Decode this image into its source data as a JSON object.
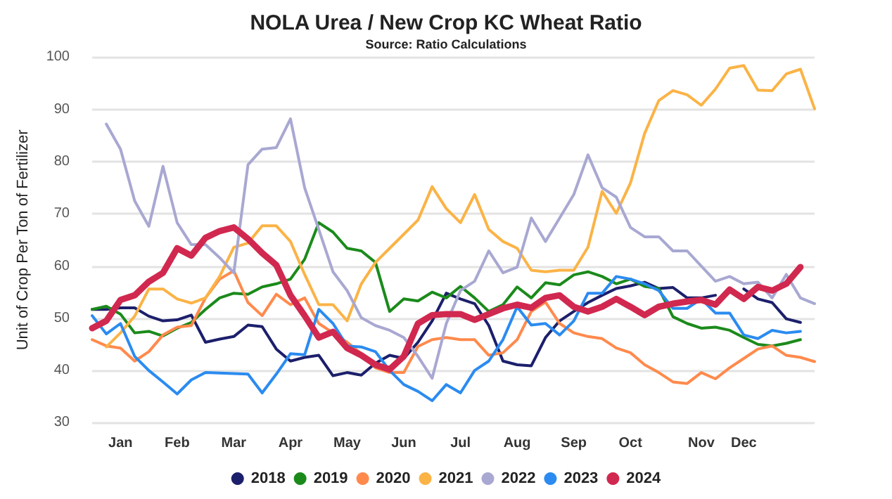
{
  "chart_data": {
    "type": "line",
    "title": "NOLA Urea / New Crop KC Wheat Ratio",
    "subtitle": "Source: Ratio Calculations",
    "ylabel": "Unit of Crop Per Ton of Fertilizer",
    "categories": [
      null,
      null,
      "Jan",
      null,
      null,
      null,
      "Feb",
      null,
      null,
      null,
      "Mar",
      null,
      null,
      null,
      "Apr",
      null,
      null,
      null,
      "May",
      null,
      null,
      null,
      "Jun",
      null,
      null,
      null,
      "Jul",
      null,
      null,
      null,
      "Aug",
      null,
      null,
      null,
      "Sep",
      null,
      null,
      null,
      "Oct",
      null,
      null,
      null,
      null,
      "Nov",
      null,
      null,
      "Dec",
      null,
      null,
      null,
      null,
      null
    ],
    "ylim": [
      30,
      100
    ],
    "yticks": [
      30,
      40,
      50,
      60,
      70,
      80,
      90,
      100
    ],
    "grid": "y",
    "legend": "bottom",
    "marker": "none",
    "line_style": "solid",
    "series": [
      {
        "name": "2018",
        "color": "#1c1f6b",
        "values": [
          51.7,
          51.7,
          52,
          52,
          50.4,
          49.5,
          49.7,
          50.6,
          45.4,
          46,
          46.5,
          48.7,
          48.4,
          44.1,
          41.8,
          42.5,
          42.9,
          39,
          39.6,
          39.1,
          41.4,
          42.9,
          42.3,
          45.4,
          49.5,
          54.8,
          53.7,
          52.8,
          48.6,
          41.8,
          41.1,
          40.9,
          46.3,
          49.5,
          51.3,
          53,
          54.4,
          55.7,
          56.2,
          56.9,
          55.7,
          55.9,
          53.9,
          53.9,
          54.4,
          null,
          55.6,
          53.7,
          53,
          49.9,
          49.2,
          null
        ]
      },
      {
        "name": "2019",
        "color": "#1b8a1b",
        "values": [
          51.7,
          52.3,
          50.8,
          47.2,
          47.5,
          46.6,
          48.1,
          49.2,
          51.7,
          53.9,
          54.8,
          54.6,
          56,
          56.6,
          57.5,
          61.3,
          68.3,
          66.5,
          63.4,
          62.9,
          60.7,
          51.3,
          53.7,
          53.3,
          55,
          53.9,
          56.1,
          53.9,
          51.3,
          52.6,
          56,
          53.9,
          56.8,
          56.4,
          58.3,
          58.9,
          58,
          56.6,
          57.5,
          56.1,
          55.7,
          50.3,
          49,
          48.1,
          48.3,
          47.7,
          46.3,
          45,
          44.7,
          45.2,
          45.9,
          null
        ]
      },
      {
        "name": "2020",
        "color": "#ff8a4c",
        "values": [
          45.9,
          44.7,
          44.3,
          41.8,
          43.6,
          46.8,
          48.3,
          48.6,
          53.9,
          57.5,
          59.1,
          53,
          50.5,
          54.6,
          52.6,
          53.9,
          49,
          47.2,
          45.4,
          43.2,
          40.5,
          39.6,
          39.6,
          44.6,
          45.9,
          46.3,
          45.9,
          45.9,
          42.9,
          43.4,
          45.9,
          51.3,
          53.1,
          49,
          47.2,
          46.5,
          46.1,
          44.3,
          43.4,
          41.1,
          39.6,
          37.8,
          37.5,
          39.6,
          38.4,
          40.5,
          42.3,
          44.1,
          44.7,
          42.9,
          42.5,
          41.7
        ]
      },
      {
        "name": "2021",
        "color": "#fbb346",
        "values": [
          null,
          44.5,
          47.2,
          50.4,
          55.6,
          55.6,
          53.7,
          52.9,
          53.9,
          58,
          63.6,
          64.4,
          67.7,
          67.7,
          64.7,
          58.4,
          52.6,
          52.6,
          49.5,
          56.6,
          60.7,
          63.4,
          66.1,
          68.8,
          75.2,
          71,
          68.3,
          73.7,
          67,
          64.7,
          63.4,
          59.2,
          58.9,
          59.2,
          59.2,
          63.6,
          74.3,
          70.1,
          75.9,
          85.4,
          91.7,
          93.6,
          92.8,
          90.8,
          93.9,
          97.9,
          98.4,
          93.7,
          93.6,
          96.8,
          97.7,
          90.1
        ]
      },
      {
        "name": "2022",
        "color": "#a8a8d2",
        "values": [
          null,
          87.2,
          82.4,
          72.5,
          67.6,
          79.1,
          68.3,
          64.1,
          64.1,
          61.6,
          58.7,
          79.4,
          82.4,
          82.7,
          88.2,
          75,
          67,
          58.9,
          55.3,
          50.1,
          48.6,
          47.7,
          46.3,
          42.7,
          38.5,
          49,
          55.3,
          57.1,
          62.9,
          58.7,
          59.8,
          69.2,
          64.7,
          69.2,
          73.7,
          81.3,
          75,
          73.2,
          67.4,
          65.6,
          65.6,
          62.9,
          62.9,
          60,
          57.1,
          58,
          56.6,
          56.9,
          53.9,
          58.4,
          53.9,
          52.8
        ]
      },
      {
        "name": "2023",
        "color": "#2b8bf0",
        "values": [
          50.5,
          47,
          49,
          42.7,
          40,
          37.8,
          35.5,
          38.2,
          39.6,
          39.5,
          39.4,
          39.3,
          35.7,
          39.3,
          43.2,
          43,
          51.7,
          49,
          44.7,
          44.5,
          43.6,
          40,
          37.3,
          36,
          34.2,
          37.3,
          35.7,
          40,
          41.8,
          45.9,
          52.2,
          48.7,
          49,
          46.8,
          49.5,
          54.8,
          54.8,
          58,
          57.5,
          56.6,
          55.3,
          51.9,
          51.9,
          53.7,
          51,
          51,
          46.8,
          46.1,
          47.7,
          47.2,
          47.5,
          null
        ]
      },
      {
        "name": "2024",
        "color": "#d1284f",
        "values": [
          48.1,
          49.5,
          53.5,
          54.4,
          57,
          58.7,
          63.4,
          62,
          65.4,
          66.7,
          67.4,
          65.2,
          62.5,
          60.2,
          54.4,
          50.5,
          46.3,
          47.4,
          44.3,
          42.9,
          41.1,
          40.2,
          42.7,
          49,
          50.6,
          50.8,
          50.8,
          49.7,
          50.8,
          51.9,
          52.6,
          52,
          53.9,
          54.4,
          52.2,
          51.3,
          52.2,
          53.7,
          52.2,
          50.6,
          52.2,
          52.8,
          53.2,
          53.5,
          52.6,
          55.5,
          53.7,
          56,
          55.3,
          56.6,
          59.8,
          null
        ]
      }
    ]
  }
}
